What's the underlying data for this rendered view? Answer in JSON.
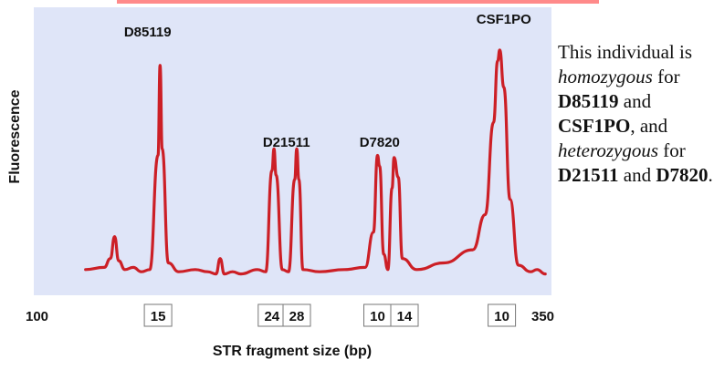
{
  "chart_data": {
    "type": "line",
    "xlabel": "STR fragment size (bp)",
    "ylabel": "Fluorescence",
    "xlim": [
      100,
      350
    ],
    "x_end_labels": [
      "100",
      "350"
    ],
    "x_tick_boxes": [
      {
        "label": "15",
        "x": 160
      },
      {
        "label": "24",
        "x": 215
      },
      {
        "label": "28",
        "x": 227
      },
      {
        "label": "10",
        "x": 266
      },
      {
        "label": "14",
        "x": 279
      },
      {
        "label": "10",
        "x": 326
      }
    ],
    "peak_labels": [
      {
        "label": "D85119",
        "x": 155
      },
      {
        "label": "D21511",
        "x": 222
      },
      {
        "label": "D7820",
        "x": 267
      },
      {
        "label": "CSF1PO",
        "x": 327
      }
    ],
    "series": [
      {
        "color": "#cc1f26",
        "points": [
          [
            125,
            3
          ],
          [
            134,
            4
          ],
          [
            137,
            8
          ],
          [
            139,
            18
          ],
          [
            141,
            7
          ],
          [
            144,
            3
          ],
          [
            148,
            4
          ],
          [
            152,
            2
          ],
          [
            156,
            3
          ],
          [
            160,
            55
          ],
          [
            161,
            96
          ],
          [
            162,
            58
          ],
          [
            165,
            6
          ],
          [
            170,
            2
          ],
          [
            178,
            3
          ],
          [
            184,
            2
          ],
          [
            188,
            1
          ],
          [
            190,
            8
          ],
          [
            192,
            1
          ],
          [
            196,
            2
          ],
          [
            200,
            1
          ],
          [
            208,
            3
          ],
          [
            212,
            2
          ],
          [
            215,
            48
          ],
          [
            216,
            58
          ],
          [
            217,
            46
          ],
          [
            220,
            3
          ],
          [
            223,
            2
          ],
          [
            226,
            44
          ],
          [
            227,
            58
          ],
          [
            228,
            44
          ],
          [
            230,
            3
          ],
          [
            238,
            2
          ],
          [
            250,
            3
          ],
          [
            260,
            4
          ],
          [
            264,
            20
          ],
          [
            266,
            55
          ],
          [
            267,
            50
          ],
          [
            269,
            10
          ],
          [
            271,
            3
          ],
          [
            273,
            40
          ],
          [
            274,
            54
          ],
          [
            276,
            45
          ],
          [
            278,
            8
          ],
          [
            285,
            3
          ],
          [
            298,
            6
          ],
          [
            312,
            12
          ],
          [
            318,
            28
          ],
          [
            322,
            70
          ],
          [
            324,
            98
          ],
          [
            325,
            103
          ],
          [
            327,
            86
          ],
          [
            330,
            35
          ],
          [
            334,
            5
          ],
          [
            340,
            2
          ],
          [
            343,
            3
          ],
          [
            347,
            1
          ]
        ]
      }
    ],
    "ylim": [
      0,
      110
    ],
    "grid": false,
    "background": "#dfe5f8"
  },
  "caption": {
    "t1": "This individual is ",
    "t2": "homozygous",
    "t3": " for ",
    "t4": "D85119",
    "t5": " and ",
    "t6": "CSF1PO",
    "t7": ", and ",
    "t8": "heterozygous",
    "t9": " for ",
    "t10": "D21511",
    "t11": " and ",
    "t12": "D7820",
    "t13": "."
  }
}
